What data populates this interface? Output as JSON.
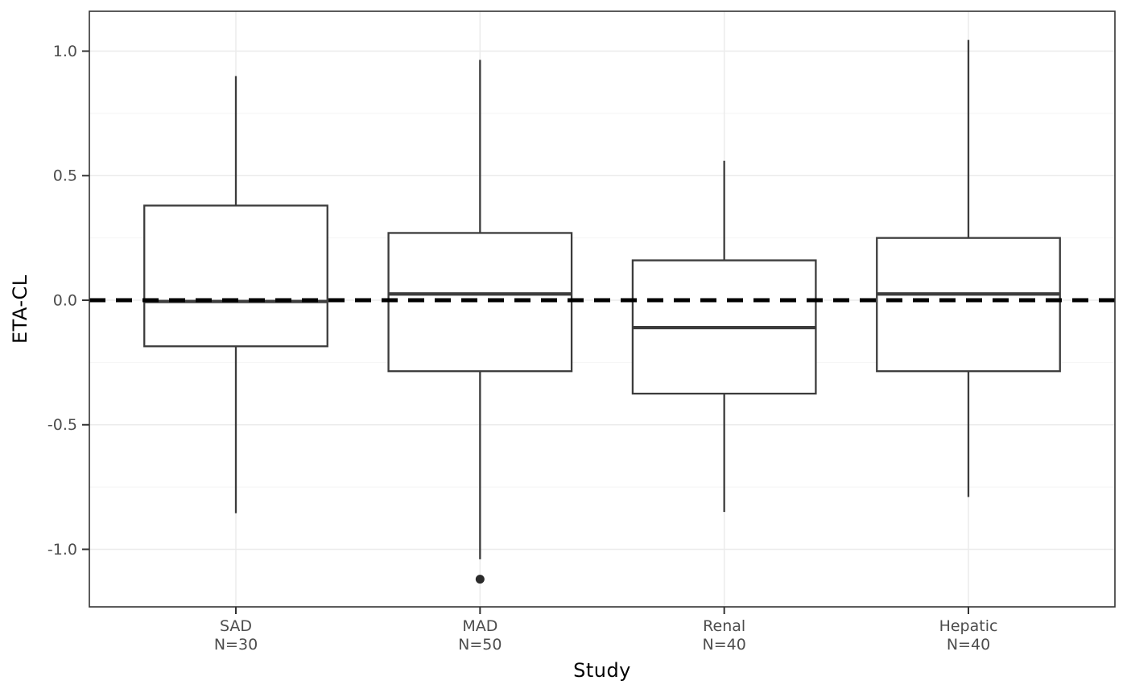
{
  "chart_data": {
    "type": "boxplot",
    "title": "",
    "xlabel": "Study",
    "ylabel": "ETA-CL",
    "ylim": [
      -1.231,
      1.16
    ],
    "yticks_major": [
      1.0,
      0.5,
      0.0,
      -0.5,
      -1.0
    ],
    "ytick_labels": [
      "1.0",
      "0.5",
      "0.0",
      "-0.5",
      "-1.0"
    ],
    "yticks_minor": [
      0.75,
      0.25,
      -0.25,
      -0.75
    ],
    "grid": "on",
    "legend": "none",
    "reference_line": {
      "y": 0.0,
      "style": "dashed",
      "width": 5,
      "dash": [
        20,
        13
      ],
      "color": "#000000"
    },
    "categories": [
      {
        "label": "SAD",
        "sublabel": "N=30",
        "whisker_low": -0.855,
        "q1": -0.185,
        "median": -0.005,
        "q3": 0.38,
        "whisker_high": 0.9,
        "outliers": []
      },
      {
        "label": "MAD",
        "sublabel": "N=50",
        "whisker_low": -1.04,
        "q1": -0.285,
        "median": 0.025,
        "q3": 0.27,
        "whisker_high": 0.965,
        "outliers": [
          -1.12
        ]
      },
      {
        "label": "Renal",
        "sublabel": "N=40",
        "whisker_low": -0.85,
        "q1": -0.375,
        "median": -0.11,
        "q3": 0.16,
        "whisker_high": 0.56,
        "outliers": []
      },
      {
        "label": "Hepatic",
        "sublabel": "N=40",
        "whisker_low": -0.79,
        "q1": -0.285,
        "median": 0.025,
        "q3": 0.25,
        "whisker_high": 1.045,
        "outliers": []
      }
    ],
    "colors": {
      "background": "#ffffff",
      "panel_background": "#ffffff",
      "panel_border": "#333333",
      "grid_major": "#ebebeb",
      "grid_minor": "#f4f4f4",
      "box_stroke": "#3c3c3c",
      "box_fill": "#ffffff",
      "median_stroke": "#3c3c3c",
      "outlier_fill": "#2b2b2b",
      "tick_mark": "#333333",
      "tick_label": "#4d4d4d",
      "axis_title": "#000000",
      "reference_line": "#000000"
    }
  }
}
